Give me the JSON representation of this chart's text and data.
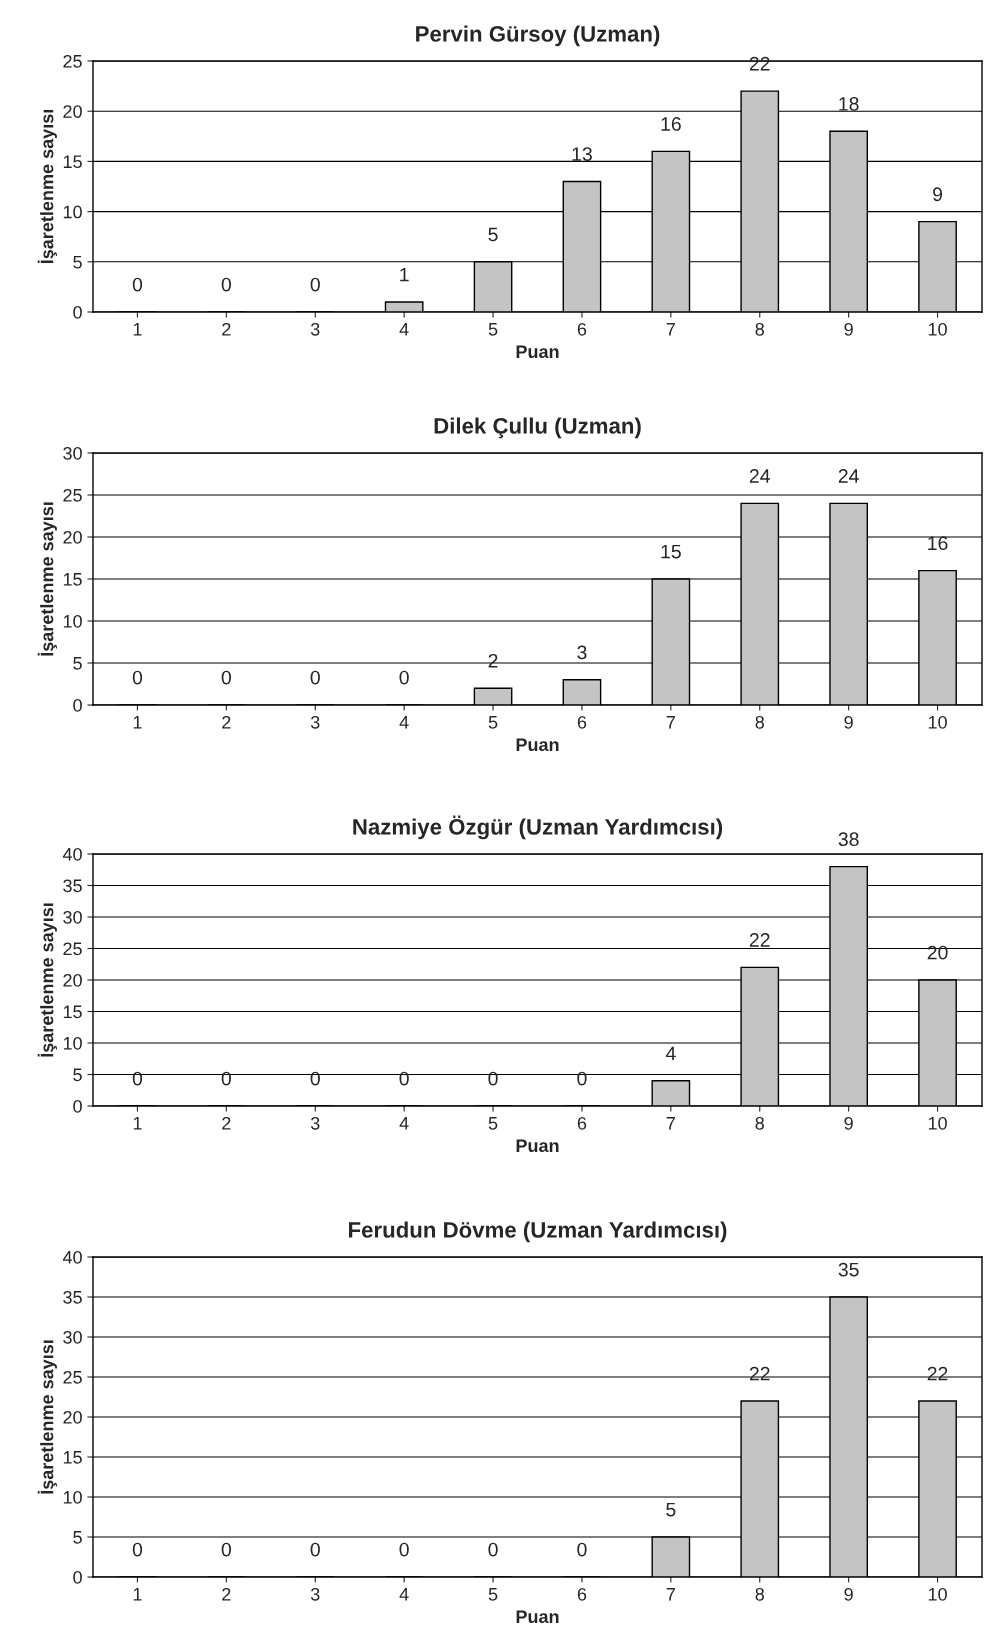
{
  "chart_data": [
    {
      "type": "bar",
      "title": "Pervin Gürsoy (Uzman)",
      "xlabel": "Puan",
      "ylabel": "İşaretlenme sayısı",
      "categories": [
        "1",
        "2",
        "3",
        "4",
        "5",
        "6",
        "7",
        "8",
        "9",
        "10"
      ],
      "values": [
        0,
        0,
        0,
        1,
        5,
        13,
        16,
        22,
        18,
        9
      ],
      "color": "#c4c4c4",
      "ylim": [
        0,
        25
      ],
      "yticks": [
        0,
        5,
        10,
        15,
        20,
        25
      ],
      "grid": "y",
      "data_labels": true,
      "legend": false
    },
    {
      "type": "bar",
      "title": "Dilek Çullu (Uzman)",
      "xlabel": "Puan",
      "ylabel": "İşaretlenme sayısı",
      "categories": [
        "1",
        "2",
        "3",
        "4",
        "5",
        "6",
        "7",
        "8",
        "9",
        "10"
      ],
      "values": [
        0,
        0,
        0,
        0,
        2,
        3,
        15,
        24,
        24,
        16
      ],
      "color": "#c4c4c4",
      "ylim": [
        0,
        30
      ],
      "yticks": [
        0,
        5,
        10,
        15,
        20,
        25,
        30
      ],
      "grid": "y",
      "data_labels": true,
      "legend": false
    },
    {
      "type": "bar",
      "title": "Nazmiye Özgür (Uzman Yardımcısı)",
      "xlabel": "Puan",
      "ylabel": "İşaretlenme sayısı",
      "categories": [
        "1",
        "2",
        "3",
        "4",
        "5",
        "6",
        "7",
        "8",
        "9",
        "10"
      ],
      "values": [
        0,
        0,
        0,
        0,
        0,
        0,
        4,
        22,
        38,
        20
      ],
      "color": "#c4c4c4",
      "ylim": [
        0,
        40
      ],
      "yticks": [
        0,
        5,
        10,
        15,
        20,
        25,
        30,
        35,
        40
      ],
      "grid": "y",
      "data_labels": true,
      "legend": false
    },
    {
      "type": "bar",
      "title": "Ferudun Dövme (Uzman Yardımcısı)",
      "xlabel": "Puan",
      "ylabel": "İşaretlenme sayısı",
      "categories": [
        "1",
        "2",
        "3",
        "4",
        "5",
        "6",
        "7",
        "8",
        "9",
        "10"
      ],
      "values": [
        0,
        0,
        0,
        0,
        0,
        0,
        5,
        22,
        35,
        22
      ],
      "color": "#c4c4c4",
      "ylim": [
        0,
        40
      ],
      "yticks": [
        0,
        5,
        10,
        15,
        20,
        25,
        30,
        35,
        40
      ],
      "grid": "y",
      "data_labels": true,
      "legend": false
    }
  ]
}
